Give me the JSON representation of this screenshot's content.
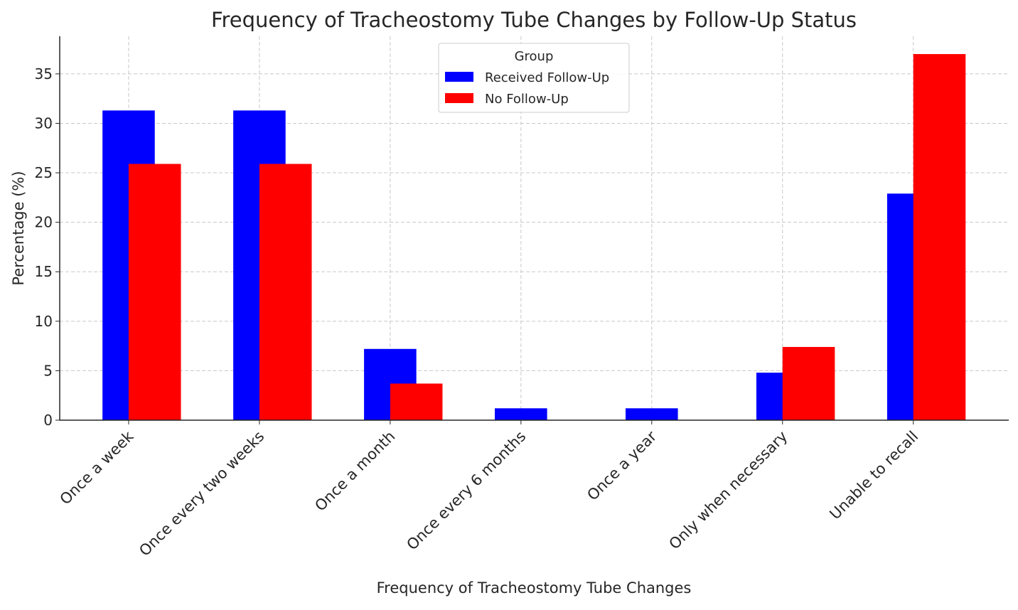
{
  "chart_data": {
    "type": "bar",
    "title": "Frequency of Tracheostomy Tube Changes by Follow-Up Status",
    "xlabel": "Frequency of Tracheostomy Tube Changes",
    "ylabel": "Percentage (%)",
    "categories": [
      "Once a week",
      "Once every two weeks",
      "Once a month",
      "Once every 6 months",
      "Once a year",
      "Only when necessary",
      "Unable to recall"
    ],
    "series": [
      {
        "name": "Received Follow-Up",
        "color": "#0000ff",
        "values": [
          31.3,
          31.3,
          7.2,
          1.2,
          1.2,
          4.8,
          22.9
        ]
      },
      {
        "name": "No Follow-Up",
        "color": "#ff0000",
        "values": [
          25.9,
          25.9,
          3.7,
          0,
          0,
          7.4,
          37.0
        ]
      }
    ],
    "yticks": [
      0,
      5,
      10,
      15,
      20,
      25,
      30,
      35
    ],
    "ylim": [
      0,
      38.8
    ],
    "grid": true,
    "legend": {
      "title": "Group",
      "placement": "top-center"
    }
  }
}
